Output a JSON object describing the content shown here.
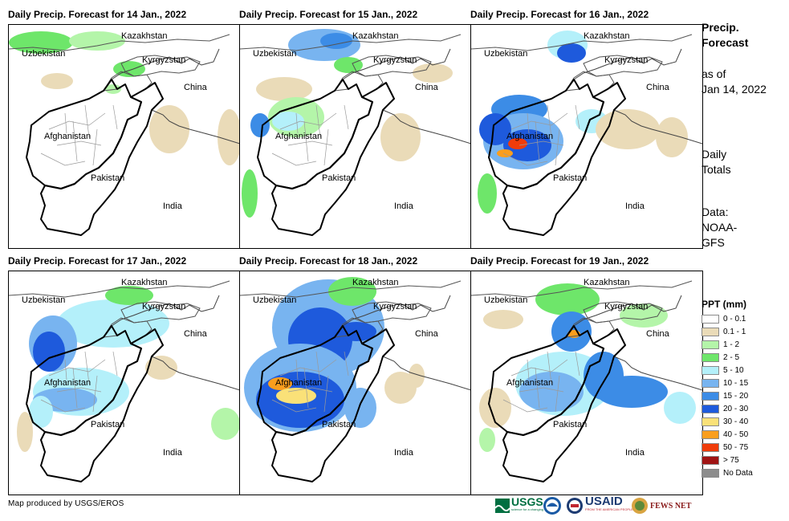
{
  "panels": [
    {
      "title": "Daily Precip. Forecast for 14 Jan., 2022"
    },
    {
      "title": "Daily Precip. Forecast for 15 Jan., 2022"
    },
    {
      "title": "Daily Precip. Forecast for 16 Jan., 2022"
    },
    {
      "title": "Daily Precip. Forecast for 17 Jan., 2022"
    },
    {
      "title": "Daily Precip. Forecast for 18 Jan., 2022"
    },
    {
      "title": "Daily Precip. Forecast for 19 Jan., 2022"
    }
  ],
  "map_labels": {
    "kazakhstan": "Kazakhstan",
    "uzbekistan": "Uzbekistan",
    "kyrgyzstan": "Kyrgyzstan",
    "china": "China",
    "afghanistan": "Afghanistan",
    "pakistan": "Pakistan",
    "india": "India"
  },
  "sidebar": {
    "title_line1": "Precip.",
    "title_line2": "Forecast",
    "asof_line1": "as of",
    "asof_line2": "Jan 14, 2022",
    "totals_line1": "Daily",
    "totals_line2": "Totals",
    "data_line1": "Data:",
    "data_line2": "NOAA-",
    "data_line3": "GFS"
  },
  "legend": {
    "title": "PPT (mm)",
    "items": [
      {
        "label": "0 - 0.1",
        "color": "#ffffff"
      },
      {
        "label": "0.1 - 1",
        "color": "#eadbb8"
      },
      {
        "label": "1 - 2",
        "color": "#b4f5a9"
      },
      {
        "label": "2 - 5",
        "color": "#6ee66a"
      },
      {
        "label": "5 - 10",
        "color": "#b4f0fa"
      },
      {
        "label": "10 - 15",
        "color": "#78b4f0"
      },
      {
        "label": "15 - 20",
        "color": "#3c8ce6"
      },
      {
        "label": "20 - 30",
        "color": "#1e5adc"
      },
      {
        "label": "30 - 40",
        "color": "#fae178"
      },
      {
        "label": "40 - 50",
        "color": "#fa9e1e"
      },
      {
        "label": "50 - 75",
        "color": "#f03c0a"
      },
      {
        "label": "> 75",
        "color": "#a01414"
      },
      {
        "label": "No Data",
        "color": "#8c8c8c"
      }
    ]
  },
  "footer": {
    "credit": "Map produced by USGS/EROS",
    "logos": {
      "usgs": "USGS",
      "usgs_tagline": "science for a changing world",
      "usaid": "USAID",
      "usaid_tagline": "FROM THE AMERICAN PEOPLE",
      "fewsnet": "FEWS NET"
    }
  }
}
